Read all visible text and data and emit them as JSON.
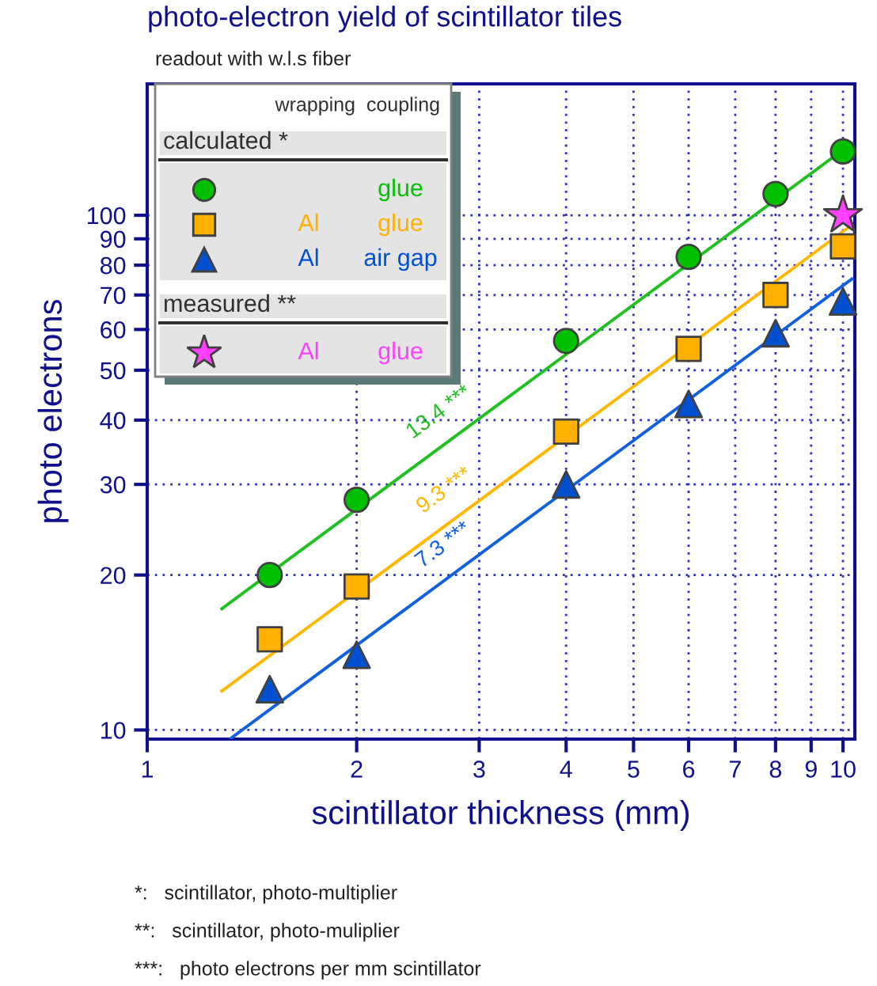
{
  "chart_data": {
    "type": "scatter",
    "title": "photo-electron yield of scintillator tiles",
    "subtitle": "readout with w.l.s fiber",
    "xlabel": "scintillator thickness (mm)",
    "ylabel": "photo electrons",
    "legend_title": "wrapping  coupling",
    "log": "xy",
    "grid": true,
    "legend": "top left",
    "xlim": [
      1,
      10.4
    ],
    "xticks": [
      1,
      2,
      3,
      4,
      5,
      6,
      7,
      8,
      9,
      10
    ],
    "ylim": [
      9.6,
      180
    ],
    "yticks": [
      10,
      20,
      30,
      40,
      50,
      60,
      70,
      80,
      90,
      100
    ],
    "x": [
      1.5,
      2,
      4,
      6,
      8,
      10
    ],
    "series": [
      {
        "name": "glue",
        "color": "#00c000",
        "marker": "circle",
        "values": [
          20,
          28,
          57,
          83,
          110,
          133
        ]
      },
      {
        "name": "Al  glue",
        "color": "#ffb000",
        "marker": "square",
        "values": [
          15,
          19,
          38,
          55,
          70,
          87
        ]
      },
      {
        "name": "Al  air gap",
        "color": "#0050d0",
        "marker": "triangle",
        "values": [
          12,
          14,
          30,
          43,
          59,
          68
        ]
      },
      {
        "name": "Al  glue",
        "color": "#ff40ff",
        "marker": "star",
        "x": [
          10
        ],
        "values": [
          100
        ]
      },
      {
        "type": "line",
        "color": "#20c020",
        "marker": "none",
        "x": [
          1.28,
          10.3
        ],
        "values": [
          17.2,
          138
        ]
      },
      {
        "type": "line",
        "color": "#ffb800",
        "marker": "none",
        "x": [
          1.28,
          10.3
        ],
        "values": [
          11.9,
          95.8
        ]
      },
      {
        "type": "line",
        "color": "#1060e0",
        "marker": "none",
        "x": [
          1.32,
          10.3
        ],
        "values": [
          9.64,
          75.2
        ]
      }
    ],
    "annotations": [
      "calculated *",
      "measured **",
      {
        "text": "13.4 ***",
        "x": 2.78,
        "y": 37.3
      },
      {
        "text": "9.3 ***",
        "x": 2.83,
        "y": 26.3
      },
      {
        "text": "7.3 ***",
        "x": 2.82,
        "y": 20.6
      },
      "*:   scintillator, photo-multiplier",
      "**:   scintillator, photo-muliplier",
      "***:   photo electrons per mm scintillator"
    ]
  }
}
